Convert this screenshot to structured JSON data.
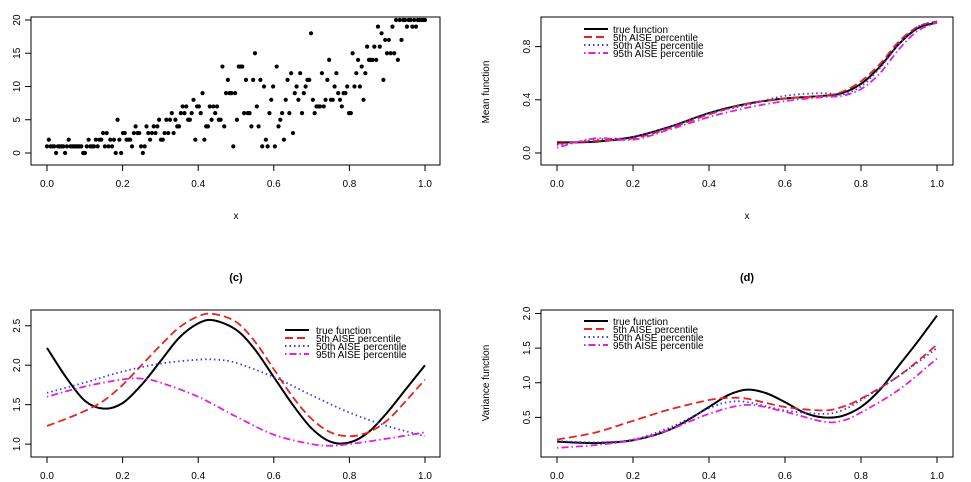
{
  "colors": {
    "true_function": "#000000",
    "p5": "#e8231f",
    "p50": "#3b3bf0",
    "p95": "#e21ee2",
    "points": "#000000"
  },
  "chart_data": [
    {
      "panel": "a",
      "type": "scatter",
      "title": "",
      "xlabel": "x",
      "ylabel": "",
      "xlim": [
        0,
        1
      ],
      "ylim": [
        0,
        20
      ],
      "xticks": [
        "0.0",
        "0.2",
        "0.4",
        "0.6",
        "0.8",
        "1.0"
      ],
      "yticks": [
        "0",
        "5",
        "10",
        "15",
        "20"
      ],
      "grid": false,
      "trend": {
        "x": [
          0,
          0.2,
          0.4,
          0.5,
          0.6,
          0.7,
          0.8,
          0.9,
          1.0
        ],
        "y": [
          0.8,
          1.7,
          5.5,
          7.5,
          8.2,
          8.7,
          10.0,
          16.5,
          20.0
        ]
      },
      "n_points": 210,
      "y_range_observed": [
        0,
        20
      ]
    },
    {
      "panel": "b",
      "type": "line",
      "title": "",
      "xlabel": "x",
      "ylabel": "Mean function",
      "xlim": [
        0,
        1
      ],
      "ylim": [
        0,
        1
      ],
      "xticks": [
        "0.0",
        "0.2",
        "0.4",
        "0.6",
        "0.8",
        "1.0"
      ],
      "yticks": [
        "0.0",
        "0.4",
        "0.8"
      ],
      "grid": false,
      "legend_position": "top-left",
      "series": [
        {
          "name": "true function",
          "style": "solid",
          "x": [
            0,
            0.1,
            0.2,
            0.3,
            0.4,
            0.5,
            0.6,
            0.7,
            0.75,
            0.8,
            0.85,
            0.9,
            0.95,
            1.0
          ],
          "y": [
            0.08,
            0.085,
            0.12,
            0.2,
            0.3,
            0.37,
            0.41,
            0.43,
            0.45,
            0.52,
            0.65,
            0.82,
            0.94,
            0.98
          ]
        },
        {
          "name": "5th AISE percentile",
          "style": "dashed",
          "x": [
            0,
            0.1,
            0.2,
            0.3,
            0.4,
            0.5,
            0.6,
            0.7,
            0.75,
            0.8,
            0.85,
            0.9,
            0.95,
            1.0
          ],
          "y": [
            0.07,
            0.09,
            0.11,
            0.19,
            0.29,
            0.37,
            0.41,
            0.43,
            0.46,
            0.54,
            0.67,
            0.84,
            0.95,
            0.99
          ]
        },
        {
          "name": "50th AISE percentile",
          "style": "dotted",
          "x": [
            0,
            0.1,
            0.2,
            0.3,
            0.4,
            0.5,
            0.6,
            0.7,
            0.75,
            0.8,
            0.85,
            0.9,
            0.95,
            1.0
          ],
          "y": [
            0.06,
            0.1,
            0.12,
            0.2,
            0.3,
            0.36,
            0.43,
            0.45,
            0.44,
            0.5,
            0.64,
            0.82,
            0.95,
            0.99
          ]
        },
        {
          "name": "95th AISE percentile",
          "style": "dotdash",
          "x": [
            0,
            0.1,
            0.2,
            0.3,
            0.4,
            0.5,
            0.6,
            0.7,
            0.75,
            0.8,
            0.85,
            0.9,
            0.95,
            1.0
          ],
          "y": [
            0.04,
            0.11,
            0.1,
            0.18,
            0.27,
            0.34,
            0.39,
            0.42,
            0.43,
            0.48,
            0.6,
            0.78,
            0.92,
            0.98
          ]
        }
      ]
    },
    {
      "panel": "c",
      "type": "line",
      "title": "(c)",
      "xlabel": "",
      "ylabel": "",
      "xlim": [
        0,
        1
      ],
      "ylim": [
        0.9,
        2.7
      ],
      "xticks": [
        "0.0",
        "0.2",
        "0.4",
        "0.6",
        "0.8",
        "1.0"
      ],
      "yticks": [
        "1.0",
        "1.5",
        "2.0",
        "2.5"
      ],
      "grid": false,
      "legend_position": "top-right",
      "series": [
        {
          "name": "true function",
          "style": "solid",
          "x": [
            0,
            0.05,
            0.1,
            0.15,
            0.2,
            0.25,
            0.3,
            0.35,
            0.4,
            0.44,
            0.5,
            0.55,
            0.6,
            0.65,
            0.7,
            0.75,
            0.8,
            0.85,
            0.9,
            0.95,
            1.0
          ],
          "y": [
            2.22,
            1.85,
            1.55,
            1.45,
            1.52,
            1.75,
            2.05,
            2.35,
            2.53,
            2.57,
            2.45,
            2.2,
            1.85,
            1.5,
            1.2,
            1.03,
            1.02,
            1.15,
            1.4,
            1.7,
            2.0
          ]
        },
        {
          "name": "5th AISE percentile",
          "style": "dashed",
          "x": [
            0,
            0.05,
            0.1,
            0.15,
            0.2,
            0.25,
            0.3,
            0.35,
            0.4,
            0.44,
            0.5,
            0.55,
            0.6,
            0.65,
            0.7,
            0.75,
            0.8,
            0.85,
            0.9,
            0.95,
            1.0
          ],
          "y": [
            1.23,
            1.32,
            1.42,
            1.55,
            1.75,
            2.0,
            2.25,
            2.48,
            2.62,
            2.65,
            2.55,
            2.3,
            1.95,
            1.6,
            1.32,
            1.15,
            1.1,
            1.15,
            1.3,
            1.55,
            1.82
          ]
        },
        {
          "name": "50th AISE percentile",
          "style": "dotted",
          "x": [
            0,
            0.1,
            0.2,
            0.3,
            0.4,
            0.45,
            0.5,
            0.6,
            0.7,
            0.8,
            0.9,
            1.0
          ],
          "y": [
            1.65,
            1.78,
            1.92,
            2.02,
            2.07,
            2.07,
            2.03,
            1.85,
            1.62,
            1.4,
            1.23,
            1.1
          ]
        },
        {
          "name": "95th AISE percentile",
          "style": "dotdash",
          "x": [
            0,
            0.1,
            0.2,
            0.25,
            0.3,
            0.4,
            0.5,
            0.6,
            0.7,
            0.75,
            0.8,
            0.9,
            1.0
          ],
          "y": [
            1.6,
            1.73,
            1.82,
            1.83,
            1.78,
            1.6,
            1.35,
            1.12,
            1.0,
            0.98,
            1.0,
            1.07,
            1.15
          ]
        }
      ]
    },
    {
      "panel": "d",
      "type": "line",
      "title": "(d)",
      "xlabel": "",
      "ylabel": "Variance function",
      "xlim": [
        0,
        1
      ],
      "ylim": [
        0,
        2.05
      ],
      "xticks": [
        "0.0",
        "0.2",
        "0.4",
        "0.6",
        "0.8",
        "1.0"
      ],
      "yticks": [
        "0.5",
        "1.0",
        "1.5",
        "2.0"
      ],
      "grid": false,
      "legend_position": "top-left",
      "series": [
        {
          "name": "true function",
          "style": "solid",
          "x": [
            0,
            0.1,
            0.2,
            0.3,
            0.4,
            0.45,
            0.5,
            0.55,
            0.6,
            0.65,
            0.7,
            0.75,
            0.8,
            0.85,
            0.9,
            0.95,
            1.0
          ],
          "y": [
            0.15,
            0.13,
            0.17,
            0.33,
            0.65,
            0.82,
            0.9,
            0.85,
            0.72,
            0.57,
            0.5,
            0.52,
            0.65,
            0.9,
            1.25,
            1.6,
            1.97
          ]
        },
        {
          "name": "5th AISE percentile",
          "style": "dashed",
          "x": [
            0,
            0.1,
            0.2,
            0.3,
            0.4,
            0.45,
            0.5,
            0.6,
            0.7,
            0.75,
            0.8,
            0.9,
            1.0
          ],
          "y": [
            0.18,
            0.28,
            0.45,
            0.62,
            0.75,
            0.78,
            0.77,
            0.65,
            0.6,
            0.65,
            0.77,
            1.1,
            1.55
          ]
        },
        {
          "name": "50th AISE percentile",
          "style": "dotted",
          "x": [
            0,
            0.1,
            0.2,
            0.3,
            0.4,
            0.45,
            0.5,
            0.6,
            0.7,
            0.75,
            0.8,
            0.9,
            1.0
          ],
          "y": [
            0.16,
            0.14,
            0.18,
            0.36,
            0.63,
            0.72,
            0.72,
            0.6,
            0.55,
            0.6,
            0.75,
            1.1,
            1.5
          ]
        },
        {
          "name": "95th AISE percentile",
          "style": "dotdash",
          "x": [
            0,
            0.1,
            0.2,
            0.3,
            0.4,
            0.5,
            0.6,
            0.7,
            0.75,
            0.8,
            0.9,
            1.0
          ],
          "y": [
            0.06,
            0.1,
            0.17,
            0.33,
            0.55,
            0.68,
            0.58,
            0.44,
            0.45,
            0.57,
            0.9,
            1.35
          ]
        }
      ]
    }
  ]
}
